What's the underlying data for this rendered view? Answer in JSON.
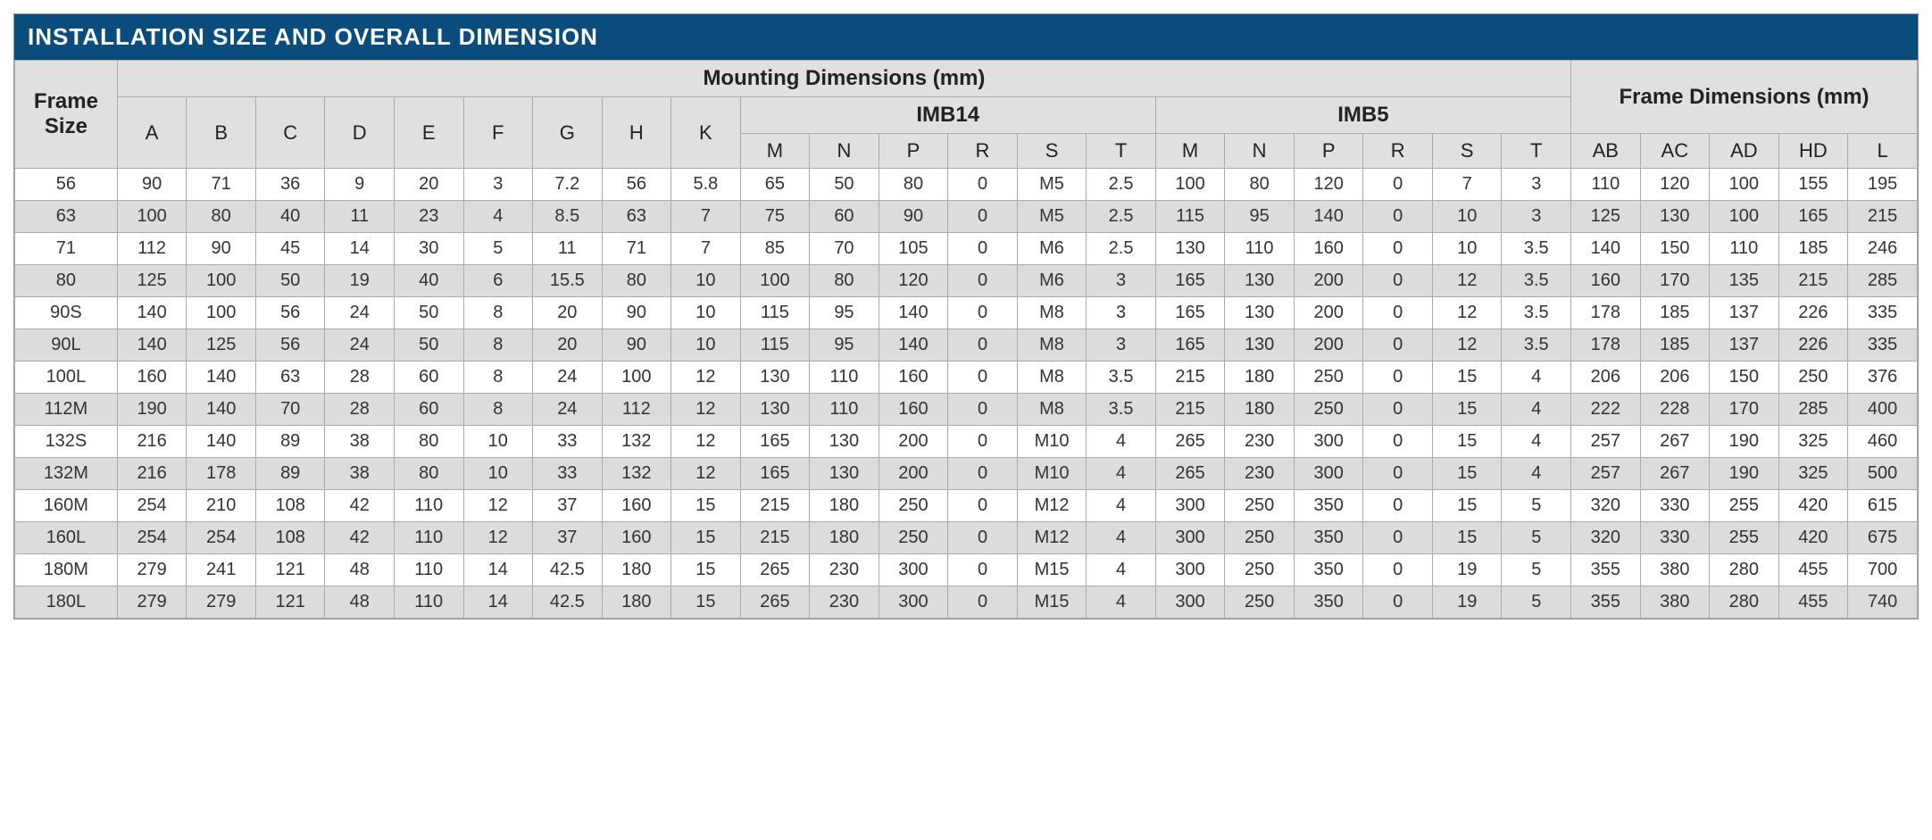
{
  "title": "INSTALLATION SIZE AND OVERALL DIMENSION",
  "table": {
    "type": "table",
    "background_color": "#ffffff",
    "stripe_color": "#dcdcdc",
    "header_bg": "#e0e0e0",
    "title_bg": "#0a4c7c",
    "title_color": "#ffffff",
    "border_color": "#aaaaaa",
    "header_fontsize": 22,
    "cell_fontsize": 20,
    "groups": {
      "frame_size": "Frame Size",
      "mounting": "Mounting Dimensions (mm)",
      "imb14": "IMB14",
      "imb5": "IMB5",
      "frame_dim": "Frame Dimensions (mm)"
    },
    "columns": [
      "A",
      "B",
      "C",
      "D",
      "E",
      "F",
      "G",
      "H",
      "K",
      "M",
      "N",
      "P",
      "R",
      "S",
      "T",
      "M",
      "N",
      "P",
      "R",
      "S",
      "T",
      "AB",
      "AC",
      "AD",
      "HD",
      "L"
    ],
    "rows": [
      {
        "size": "56",
        "v": [
          "90",
          "71",
          "36",
          "9",
          "20",
          "3",
          "7.2",
          "56",
          "5.8",
          "65",
          "50",
          "80",
          "0",
          "M5",
          "2.5",
          "100",
          "80",
          "120",
          "0",
          "7",
          "3",
          "110",
          "120",
          "100",
          "155",
          "195"
        ]
      },
      {
        "size": "63",
        "v": [
          "100",
          "80",
          "40",
          "11",
          "23",
          "4",
          "8.5",
          "63",
          "7",
          "75",
          "60",
          "90",
          "0",
          "M5",
          "2.5",
          "115",
          "95",
          "140",
          "0",
          "10",
          "3",
          "125",
          "130",
          "100",
          "165",
          "215"
        ]
      },
      {
        "size": "71",
        "v": [
          "112",
          "90",
          "45",
          "14",
          "30",
          "5",
          "11",
          "71",
          "7",
          "85",
          "70",
          "105",
          "0",
          "M6",
          "2.5",
          "130",
          "110",
          "160",
          "0",
          "10",
          "3.5",
          "140",
          "150",
          "110",
          "185",
          "246"
        ]
      },
      {
        "size": "80",
        "v": [
          "125",
          "100",
          "50",
          "19",
          "40",
          "6",
          "15.5",
          "80",
          "10",
          "100",
          "80",
          "120",
          "0",
          "M6",
          "3",
          "165",
          "130",
          "200",
          "0",
          "12",
          "3.5",
          "160",
          "170",
          "135",
          "215",
          "285"
        ]
      },
      {
        "size": "90S",
        "v": [
          "140",
          "100",
          "56",
          "24",
          "50",
          "8",
          "20",
          "90",
          "10",
          "115",
          "95",
          "140",
          "0",
          "M8",
          "3",
          "165",
          "130",
          "200",
          "0",
          "12",
          "3.5",
          "178",
          "185",
          "137",
          "226",
          "335"
        ]
      },
      {
        "size": "90L",
        "v": [
          "140",
          "125",
          "56",
          "24",
          "50",
          "8",
          "20",
          "90",
          "10",
          "115",
          "95",
          "140",
          "0",
          "M8",
          "3",
          "165",
          "130",
          "200",
          "0",
          "12",
          "3.5",
          "178",
          "185",
          "137",
          "226",
          "335"
        ]
      },
      {
        "size": "100L",
        "v": [
          "160",
          "140",
          "63",
          "28",
          "60",
          "8",
          "24",
          "100",
          "12",
          "130",
          "110",
          "160",
          "0",
          "M8",
          "3.5",
          "215",
          "180",
          "250",
          "0",
          "15",
          "4",
          "206",
          "206",
          "150",
          "250",
          "376"
        ]
      },
      {
        "size": "112M",
        "v": [
          "190",
          "140",
          "70",
          "28",
          "60",
          "8",
          "24",
          "112",
          "12",
          "130",
          "110",
          "160",
          "0",
          "M8",
          "3.5",
          "215",
          "180",
          "250",
          "0",
          "15",
          "4",
          "222",
          "228",
          "170",
          "285",
          "400"
        ]
      },
      {
        "size": "132S",
        "v": [
          "216",
          "140",
          "89",
          "38",
          "80",
          "10",
          "33",
          "132",
          "12",
          "165",
          "130",
          "200",
          "0",
          "M10",
          "4",
          "265",
          "230",
          "300",
          "0",
          "15",
          "4",
          "257",
          "267",
          "190",
          "325",
          "460"
        ]
      },
      {
        "size": "132M",
        "v": [
          "216",
          "178",
          "89",
          "38",
          "80",
          "10",
          "33",
          "132",
          "12",
          "165",
          "130",
          "200",
          "0",
          "M10",
          "4",
          "265",
          "230",
          "300",
          "0",
          "15",
          "4",
          "257",
          "267",
          "190",
          "325",
          "500"
        ]
      },
      {
        "size": "160M",
        "v": [
          "254",
          "210",
          "108",
          "42",
          "110",
          "12",
          "37",
          "160",
          "15",
          "215",
          "180",
          "250",
          "0",
          "M12",
          "4",
          "300",
          "250",
          "350",
          "0",
          "15",
          "5",
          "320",
          "330",
          "255",
          "420",
          "615"
        ]
      },
      {
        "size": "160L",
        "v": [
          "254",
          "254",
          "108",
          "42",
          "110",
          "12",
          "37",
          "160",
          "15",
          "215",
          "180",
          "250",
          "0",
          "M12",
          "4",
          "300",
          "250",
          "350",
          "0",
          "15",
          "5",
          "320",
          "330",
          "255",
          "420",
          "675"
        ]
      },
      {
        "size": "180M",
        "v": [
          "279",
          "241",
          "121",
          "48",
          "110",
          "14",
          "42.5",
          "180",
          "15",
          "265",
          "230",
          "300",
          "0",
          "M15",
          "4",
          "300",
          "250",
          "350",
          "0",
          "19",
          "5",
          "355",
          "380",
          "280",
          "455",
          "700"
        ]
      },
      {
        "size": "180L",
        "v": [
          "279",
          "279",
          "121",
          "48",
          "110",
          "14",
          "42.5",
          "180",
          "15",
          "265",
          "230",
          "300",
          "0",
          "M15",
          "4",
          "300",
          "250",
          "350",
          "0",
          "19",
          "5",
          "355",
          "380",
          "280",
          "455",
          "740"
        ]
      }
    ]
  }
}
